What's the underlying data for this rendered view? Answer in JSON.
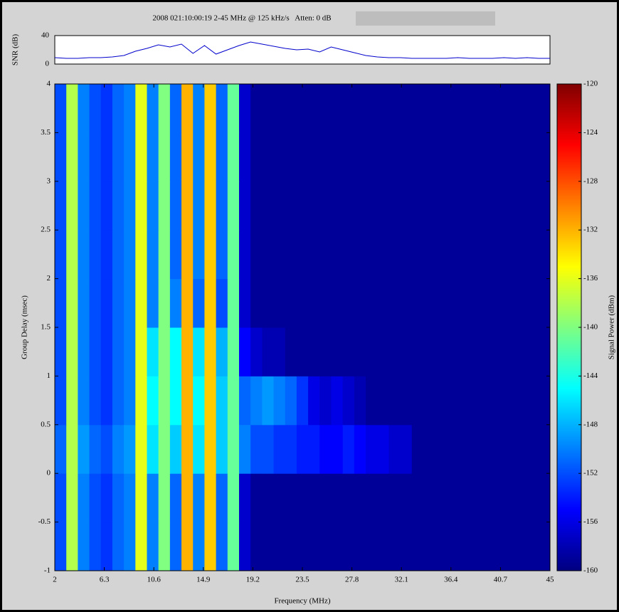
{
  "chart_data": [
    {
      "type": "line",
      "title": "2008 021:10:00:19 2-45 MHz @ 125 kHz/s   Atten: 0 dB",
      "y_label": "SNR (dB)",
      "x": [
        2,
        3,
        4,
        5,
        6,
        7,
        8,
        9,
        10,
        11,
        12,
        13,
        14,
        15,
        16,
        17,
        18,
        19,
        20,
        21,
        22,
        23,
        24,
        25,
        26,
        27,
        28,
        29,
        30,
        31,
        32,
        33,
        34,
        35,
        36,
        37,
        38,
        39,
        40,
        41,
        42,
        43,
        44,
        45
      ],
      "series": [
        {
          "color": "#0000cc",
          "values": [
            9,
            8,
            8,
            9,
            9,
            10,
            12,
            18,
            22,
            27,
            24,
            28,
            15,
            26,
            14,
            20,
            26,
            31,
            28,
            25,
            22,
            20,
            21,
            17,
            24,
            20,
            16,
            12,
            10,
            9,
            9,
            8,
            8,
            8,
            8,
            9,
            8,
            8,
            8,
            9,
            8,
            9,
            8,
            8
          ]
        }
      ],
      "xlim": [
        2,
        45
      ],
      "ylim": [
        0,
        40
      ],
      "yticks": [
        0,
        40
      ]
    },
    {
      "type": "heatmap",
      "x_label": "Frequency (MHz)",
      "y_label": "Group Delay (msec)",
      "colorbar_label": "Signal Power (dBm)",
      "colormap": "jet",
      "zlim": [
        -160,
        -120
      ],
      "zticks": [
        -120,
        -124,
        -128,
        -132,
        -136,
        -140,
        -144,
        -148,
        -152,
        -156,
        -160
      ],
      "xlim": [
        2,
        45
      ],
      "xticks": [
        2,
        6.3,
        10.6,
        14.9,
        19.2,
        23.5,
        27.8,
        32.1,
        36.4,
        40.7,
        45
      ],
      "ylim": [
        -1,
        4
      ],
      "yticks": [
        -1,
        -0.5,
        0,
        0.5,
        1,
        1.5,
        2,
        2.5,
        3,
        3.5,
        4
      ],
      "xbins": [
        2,
        3,
        4,
        5,
        6,
        7,
        8,
        9,
        10,
        11,
        12,
        13,
        14,
        15,
        16,
        17,
        18,
        19,
        20,
        21,
        22,
        23,
        24,
        25,
        26,
        27,
        28,
        29,
        30,
        31,
        32,
        33,
        34,
        35,
        36,
        37,
        38,
        39,
        40,
        41,
        42,
        43,
        44,
        45
      ],
      "ybins": [
        -1,
        -0.5,
        0,
        0.5,
        1,
        1.5,
        2,
        2.5,
        3,
        3.5,
        4
      ],
      "z": [
        [
          -152,
          -138,
          -150,
          -152,
          -153,
          -151,
          -150,
          -136,
          -150,
          -140,
          -151,
          -132,
          -150,
          -133,
          -151,
          -141,
          -157,
          -159,
          -159,
          -159,
          -159,
          -159,
          -159,
          -159,
          -159,
          -159,
          -159,
          -159,
          -159,
          -159,
          -159,
          -159,
          -159,
          -159,
          -159,
          -159,
          -159,
          -159,
          -159,
          -159,
          -159,
          -159,
          -159
        ],
        [
          -152,
          -138,
          -150,
          -152,
          -153,
          -151,
          -150,
          -136,
          -150,
          -140,
          -151,
          -132,
          -150,
          -133,
          -151,
          -141,
          -157,
          -159,
          -159,
          -159,
          -159,
          -159,
          -159,
          -159,
          -159,
          -159,
          -159,
          -159,
          -159,
          -159,
          -159,
          -159,
          -159,
          -159,
          -159,
          -159,
          -159,
          -159,
          -159,
          -159,
          -159,
          -159,
          -159
        ],
        [
          -151,
          -138,
          -149,
          -151,
          -152,
          -150,
          -149,
          -136,
          -146,
          -140,
          -147,
          -132,
          -146,
          -133,
          -147,
          -141,
          -150,
          -152,
          -152,
          -153,
          -153,
          -154,
          -154,
          -155,
          -155,
          -154,
          -155,
          -156,
          -156,
          -157,
          -157,
          -159,
          -159,
          -159,
          -159,
          -159,
          -159,
          -159,
          -159,
          -159,
          -159,
          -159,
          -159
        ],
        [
          -152,
          -138,
          -150,
          -152,
          -153,
          -151,
          -150,
          -136,
          -145,
          -140,
          -145,
          -132,
          -145,
          -133,
          -147,
          -141,
          -151,
          -150,
          -149,
          -150,
          -151,
          -153,
          -156,
          -157,
          -156,
          -157,
          -158,
          -159,
          -159,
          -159,
          -159,
          -159,
          -159,
          -159,
          -159,
          -159,
          -159,
          -159,
          -159,
          -159,
          -159,
          -159,
          -159
        ],
        [
          -152,
          -138,
          -150,
          -152,
          -153,
          -151,
          -150,
          -136,
          -146,
          -140,
          -145,
          -132,
          -146,
          -133,
          -148,
          -141,
          -155,
          -157,
          -158,
          -158,
          -159,
          -159,
          -159,
          -159,
          -159,
          -159,
          -159,
          -159,
          -159,
          -159,
          -159,
          -159,
          -159,
          -159,
          -159,
          -159,
          -159,
          -159,
          -159,
          -159,
          -159,
          -159,
          -159
        ],
        [
          -152,
          -138,
          -150,
          -152,
          -153,
          -151,
          -150,
          -136,
          -150,
          -140,
          -150,
          -132,
          -151,
          -133,
          -152,
          -141,
          -157,
          -159,
          -159,
          -159,
          -159,
          -159,
          -159,
          -159,
          -159,
          -159,
          -159,
          -159,
          -159,
          -159,
          -159,
          -159,
          -159,
          -159,
          -159,
          -159,
          -159,
          -159,
          -159,
          -159,
          -159,
          -159,
          -159
        ],
        [
          -152,
          -138,
          -150,
          -152,
          -153,
          -151,
          -150,
          -136,
          -150,
          -140,
          -151,
          -132,
          -150,
          -133,
          -151,
          -141,
          -157,
          -159,
          -159,
          -159,
          -159,
          -159,
          -159,
          -159,
          -159,
          -159,
          -159,
          -159,
          -159,
          -159,
          -159,
          -159,
          -159,
          -159,
          -159,
          -159,
          -159,
          -159,
          -159,
          -159,
          -159,
          -159,
          -159
        ],
        [
          -152,
          -138,
          -150,
          -152,
          -153,
          -151,
          -150,
          -136,
          -150,
          -140,
          -151,
          -132,
          -150,
          -133,
          -151,
          -141,
          -157,
          -159,
          -159,
          -159,
          -159,
          -159,
          -159,
          -159,
          -159,
          -159,
          -159,
          -159,
          -159,
          -159,
          -159,
          -159,
          -159,
          -159,
          -159,
          -159,
          -159,
          -159,
          -159,
          -159,
          -159,
          -159,
          -159
        ],
        [
          -152,
          -138,
          -150,
          -152,
          -153,
          -151,
          -150,
          -136,
          -150,
          -140,
          -151,
          -132,
          -150,
          -133,
          -151,
          -141,
          -157,
          -159,
          -159,
          -159,
          -159,
          -159,
          -159,
          -159,
          -159,
          -159,
          -159,
          -159,
          -159,
          -159,
          -159,
          -159,
          -159,
          -159,
          -159,
          -159,
          -159,
          -159,
          -159,
          -159,
          -159,
          -159,
          -159
        ],
        [
          -152,
          -138,
          -150,
          -152,
          -153,
          -151,
          -150,
          -136,
          -150,
          -140,
          -151,
          -132,
          -150,
          -133,
          -151,
          -141,
          -157,
          -159,
          -159,
          -159,
          -159,
          -159,
          -159,
          -159,
          -159,
          -159,
          -159,
          -159,
          -159,
          -159,
          -159,
          -159,
          -159,
          -159,
          -159,
          -159,
          -159,
          -159,
          -159,
          -159,
          -159,
          -159,
          -159
        ]
      ]
    }
  ]
}
